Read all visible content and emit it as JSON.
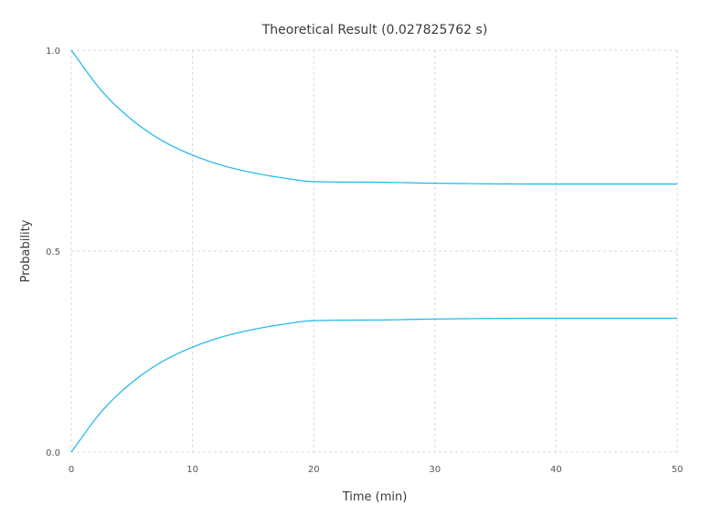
{
  "chart_data": {
    "type": "line",
    "title": "Theoretical Result (0.027825762 s)",
    "xlabel": "Time (min)",
    "ylabel": "Probability",
    "xlim": [
      0,
      50
    ],
    "ylim": [
      0,
      1
    ],
    "xticks": [
      "0",
      "10",
      "20",
      "30",
      "40",
      "50"
    ],
    "yticks": [
      "0.0",
      "0.5",
      "1.0"
    ],
    "grid": true,
    "legend": "none",
    "color": "#1ab7e8",
    "x": [
      0,
      2.5,
      5,
      7.5,
      10,
      12.5,
      15,
      17.5,
      20,
      25,
      30,
      35,
      40,
      45,
      50
    ],
    "series": [
      {
        "values": [
          1.0,
          0.899,
          0.827,
          0.775,
          0.739,
          0.713,
          0.695,
          0.682,
          0.673,
          0.6715,
          0.669,
          0.6675,
          0.667,
          0.667,
          0.667
        ]
      },
      {
        "values": [
          0.0,
          0.101,
          0.173,
          0.225,
          0.261,
          0.287,
          0.305,
          0.318,
          0.327,
          0.3285,
          0.331,
          0.3325,
          0.333,
          0.333,
          0.333
        ]
      }
    ]
  }
}
